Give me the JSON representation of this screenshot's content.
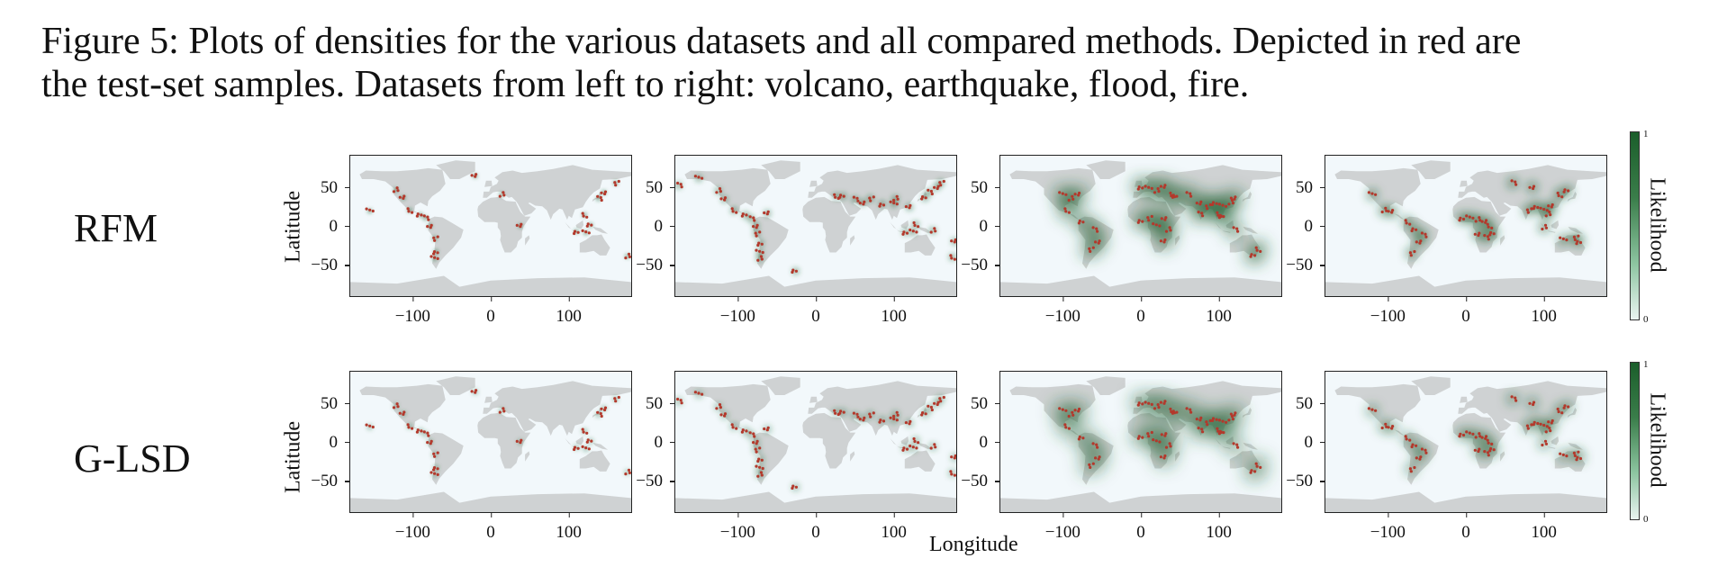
{
  "caption": {
    "line1": "Figure 5: Plots of densities for the various datasets and all compared methods. Depicted in red are",
    "line2": "the test-set samples. Datasets from left to right: volcano, earthquake, flood, fire."
  },
  "row_labels": [
    "RFM",
    "G-LSD"
  ],
  "y_axis_label": "Latitude",
  "x_axis_label": "Longitude",
  "y_ticks": [
    "50",
    "0",
    "−50"
  ],
  "x_ticks": [
    "−100",
    "0",
    "100"
  ],
  "colorbar": {
    "label": "Likelihood",
    "max": "1",
    "min": "0",
    "high_color": "#1b5e2b",
    "low_color": "#e9f4f0"
  },
  "colors": {
    "land": "#cfd2d3",
    "ocean": "#f2f8fb",
    "samples": "#b3392c",
    "density": "#1f5e2e"
  },
  "chart_data": [
    {
      "type": "heatmap",
      "model": "RFM",
      "dataset": "volcano",
      "xlim": [
        -180,
        180
      ],
      "ylim": [
        -90,
        90
      ]
    },
    {
      "type": "heatmap",
      "model": "RFM",
      "dataset": "earthquake",
      "xlim": [
        -180,
        180
      ],
      "ylim": [
        -90,
        90
      ]
    },
    {
      "type": "heatmap",
      "model": "RFM",
      "dataset": "flood",
      "xlim": [
        -180,
        180
      ],
      "ylim": [
        -90,
        90
      ]
    },
    {
      "type": "heatmap",
      "model": "RFM",
      "dataset": "fire",
      "xlim": [
        -180,
        180
      ],
      "ylim": [
        -90,
        90
      ]
    },
    {
      "type": "heatmap",
      "model": "G-LSD",
      "dataset": "volcano",
      "xlim": [
        -180,
        180
      ],
      "ylim": [
        -90,
        90
      ]
    },
    {
      "type": "heatmap",
      "model": "G-LSD",
      "dataset": "earthquake",
      "xlim": [
        -180,
        180
      ],
      "ylim": [
        -90,
        90
      ]
    },
    {
      "type": "heatmap",
      "model": "G-LSD",
      "dataset": "flood",
      "xlim": [
        -180,
        180
      ],
      "ylim": [
        -90,
        90
      ]
    },
    {
      "type": "heatmap",
      "model": "G-LSD",
      "dataset": "fire",
      "xlim": [
        -180,
        180
      ],
      "ylim": [
        -90,
        90
      ]
    }
  ]
}
